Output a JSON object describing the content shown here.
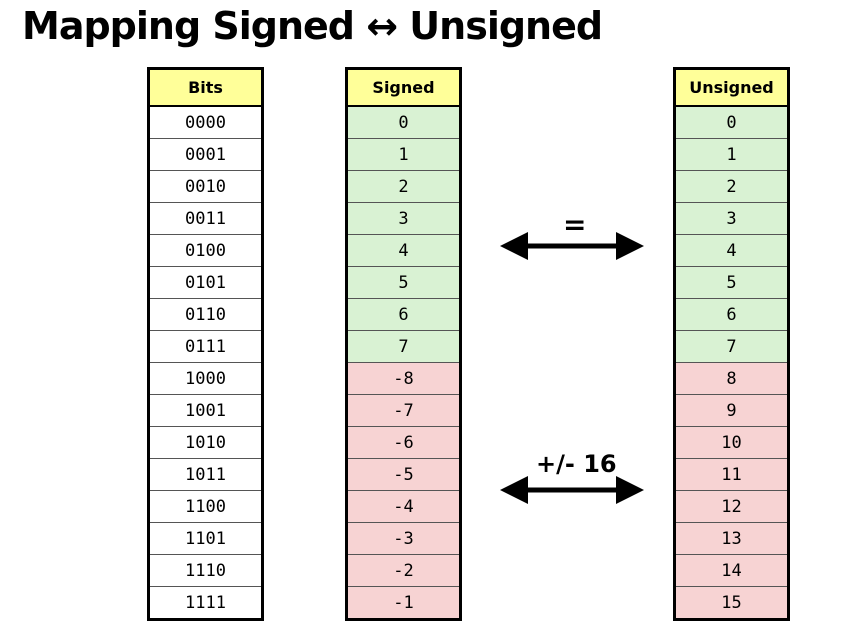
{
  "title": "Mapping Signed ↔ Unsigned",
  "columns": {
    "bits_header": "Bits",
    "signed_header": "Signed",
    "unsigned_header": "Unsigned"
  },
  "rows": [
    {
      "bits": "0000",
      "signed": "0",
      "unsigned": "0",
      "region": "same"
    },
    {
      "bits": "0001",
      "signed": "1",
      "unsigned": "1",
      "region": "same"
    },
    {
      "bits": "0010",
      "signed": "2",
      "unsigned": "2",
      "region": "same"
    },
    {
      "bits": "0011",
      "signed": "3",
      "unsigned": "3",
      "region": "same"
    },
    {
      "bits": "0100",
      "signed": "4",
      "unsigned": "4",
      "region": "same"
    },
    {
      "bits": "0101",
      "signed": "5",
      "unsigned": "5",
      "region": "same"
    },
    {
      "bits": "0110",
      "signed": "6",
      "unsigned": "6",
      "region": "same"
    },
    {
      "bits": "0111",
      "signed": "7",
      "unsigned": "7",
      "region": "same"
    },
    {
      "bits": "1000",
      "signed": "-8",
      "unsigned": "8",
      "region": "diff"
    },
    {
      "bits": "1001",
      "signed": "-7",
      "unsigned": "9",
      "region": "diff"
    },
    {
      "bits": "1010",
      "signed": "-6",
      "unsigned": "10",
      "region": "diff"
    },
    {
      "bits": "1011",
      "signed": "-5",
      "unsigned": "11",
      "region": "diff"
    },
    {
      "bits": "1100",
      "signed": "-4",
      "unsigned": "12",
      "region": "diff"
    },
    {
      "bits": "1101",
      "signed": "-3",
      "unsigned": "13",
      "region": "diff"
    },
    {
      "bits": "1110",
      "signed": "-2",
      "unsigned": "14",
      "region": "diff"
    },
    {
      "bits": "1111",
      "signed": "-1",
      "unsigned": "15",
      "region": "diff"
    }
  ],
  "arrows": {
    "equal_label": "=",
    "offset_label": "+/- 16"
  },
  "colors": {
    "header": "#ffff99",
    "same_region": "#d9f2d3",
    "diff_region": "#f7d3d3"
  }
}
